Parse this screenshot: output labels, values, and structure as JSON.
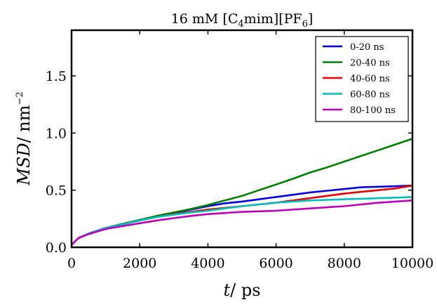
{
  "chart_data": {
    "type": "line",
    "title": {
      "prefix": "16 mM [C",
      "sub1": "4",
      "middle": "mim][PF",
      "sub2": "6",
      "suffix": "]"
    },
    "xlabel": {
      "italic": "t",
      "rest": "/ ps"
    },
    "ylabel": {
      "italic": "MSD",
      "rest": "/ nm",
      "sup": "−2"
    },
    "xlim": [
      0,
      10000
    ],
    "ylim": [
      0,
      1.9
    ],
    "xticks": [
      "0",
      "2000",
      "4000",
      "6000",
      "8000",
      "10000"
    ],
    "yticks": [
      "0.0",
      "0.5",
      "1.0",
      "1.5"
    ],
    "grid": false,
    "legend_position": "top-right",
    "colors": {
      "0-20 ns": "#0000ee",
      "20-40 ns": "#008000",
      "40-60 ns": "#ee0000",
      "60-80 ns": "#00bfbf",
      "80-100 ns": "#bf00bf"
    },
    "x": [
      0,
      200,
      500,
      1000,
      1500,
      2000,
      2500,
      3000,
      3500,
      4000,
      4500,
      5000,
      5500,
      6000,
      6500,
      7000,
      7500,
      8000,
      8500,
      9000,
      9500,
      10000
    ],
    "series": [
      {
        "name": "0-20 ns",
        "values": [
          0.02,
          0.08,
          0.12,
          0.17,
          0.2,
          0.24,
          0.27,
          0.3,
          0.33,
          0.36,
          0.385,
          0.4,
          0.42,
          0.44,
          0.46,
          0.48,
          0.495,
          0.51,
          0.525,
          0.53,
          0.535,
          0.54
        ]
      },
      {
        "name": "20-40 ns",
        "values": [
          0.02,
          0.08,
          0.12,
          0.17,
          0.205,
          0.24,
          0.275,
          0.305,
          0.335,
          0.37,
          0.41,
          0.45,
          0.5,
          0.55,
          0.6,
          0.655,
          0.7,
          0.75,
          0.8,
          0.85,
          0.9,
          0.95
        ]
      },
      {
        "name": "40-60 ns",
        "values": [
          0.02,
          0.08,
          0.12,
          0.17,
          0.2,
          0.235,
          0.265,
          0.29,
          0.31,
          0.33,
          0.345,
          0.36,
          0.375,
          0.39,
          0.41,
          0.43,
          0.45,
          0.47,
          0.485,
          0.5,
          0.515,
          0.54
        ]
      },
      {
        "name": "60-80 ns",
        "values": [
          0.02,
          0.08,
          0.12,
          0.17,
          0.2,
          0.235,
          0.265,
          0.285,
          0.305,
          0.32,
          0.34,
          0.36,
          0.375,
          0.39,
          0.4,
          0.41,
          0.415,
          0.42,
          0.425,
          0.43,
          0.435,
          0.44
        ]
      },
      {
        "name": "80-100 ns",
        "values": [
          0.02,
          0.08,
          0.115,
          0.16,
          0.185,
          0.21,
          0.235,
          0.255,
          0.275,
          0.29,
          0.3,
          0.31,
          0.315,
          0.32,
          0.33,
          0.34,
          0.35,
          0.36,
          0.375,
          0.39,
          0.4,
          0.41
        ]
      }
    ]
  }
}
